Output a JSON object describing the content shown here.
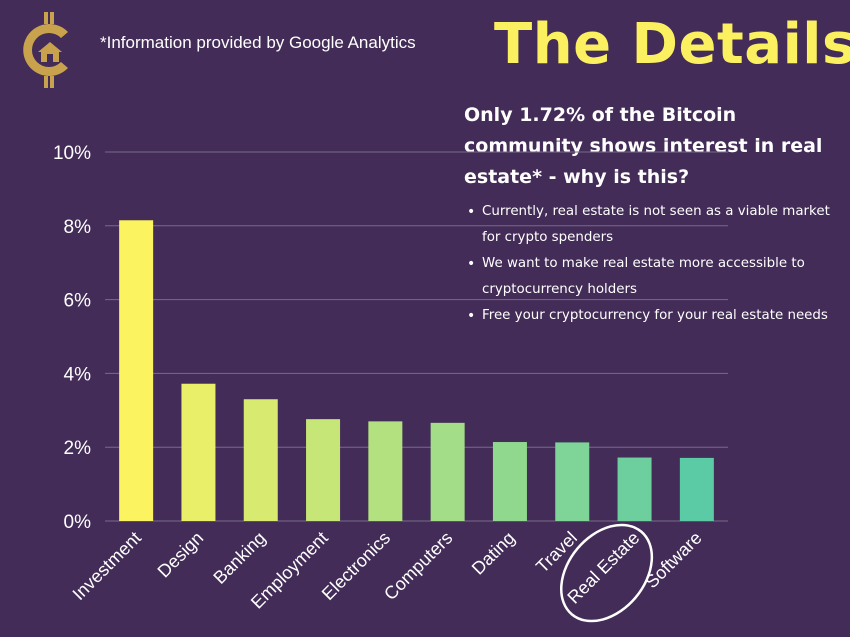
{
  "header": {
    "source_note": "*Information provided by Google Analytics",
    "headline": "The Details"
  },
  "info_panel": {
    "heading": "Only 1.72% of the Bitcoin community shows interest in real estate* - why is this?",
    "bullets": [
      "Currently, real estate is not seen as a viable market for crypto spenders",
      "We want to make real estate more accessible to cryptocurrency holders",
      "Free your cryptocurrency for your real estate needs"
    ]
  },
  "logo": {
    "icon": "bitcoin-house-icon",
    "color": "#c9a24e"
  },
  "colors": {
    "background": "#432c57",
    "headline": "#fbf160",
    "gridline": "#7a6a8a",
    "bar_gradient_start": "#fcf361",
    "bar_gradient_end": "#5bcba6",
    "highlight_circle": "#ffffff"
  },
  "chart_data": {
    "type": "bar",
    "title": "",
    "xlabel": "",
    "ylabel": "",
    "categories": [
      "Investment",
      "Design",
      "Banking",
      "Employment",
      "Electronics",
      "Computers",
      "Dating",
      "Travel",
      "Real Estate",
      "Software"
    ],
    "values": [
      8.15,
      3.72,
      3.3,
      2.76,
      2.7,
      2.66,
      2.14,
      2.13,
      1.72,
      1.71
    ],
    "ylim": [
      0,
      10
    ],
    "yticks": [
      0,
      2,
      4,
      6,
      8,
      10
    ],
    "ytick_labels": [
      "0%",
      "2%",
      "4%",
      "6%",
      "8%",
      "10%"
    ],
    "y_unit": "percent",
    "grid": true,
    "legend": "none",
    "highlighted_category": "Real Estate"
  }
}
